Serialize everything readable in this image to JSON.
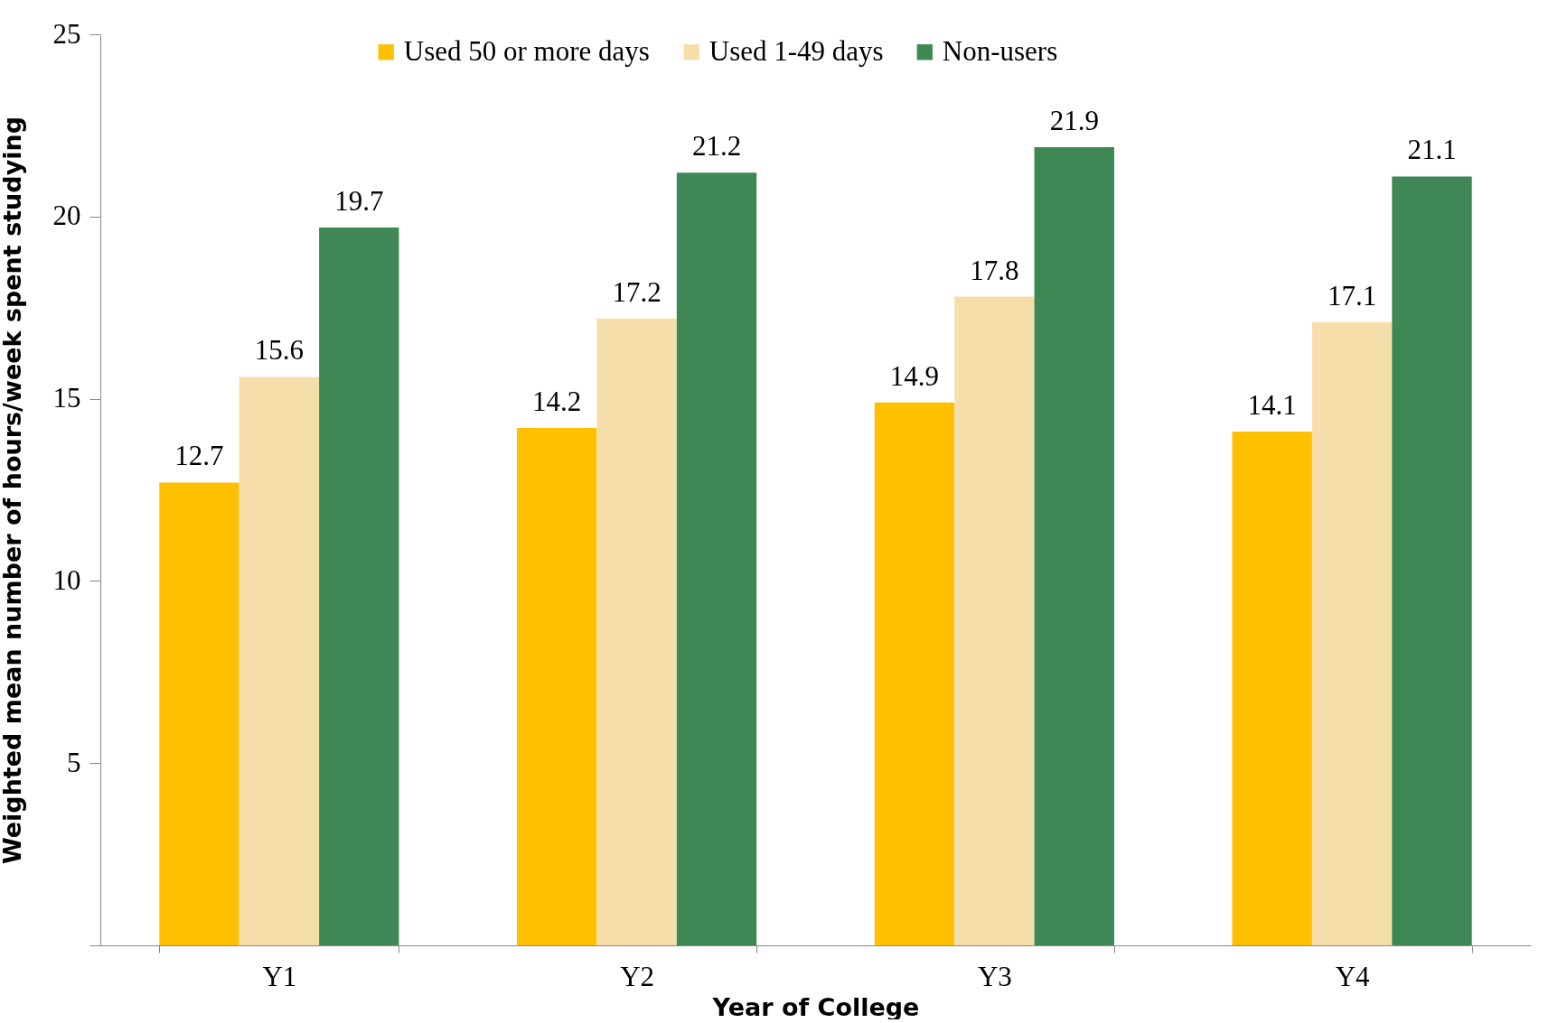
{
  "chart_data": {
    "type": "bar",
    "xlabel": "Year of College",
    "ylabel": "Weighted mean number of hours/week spent studying",
    "categories": [
      "Y1",
      "Y2",
      "Y3",
      "Y4"
    ],
    "series": [
      {
        "name": "Used 50 or more days",
        "color": "#ffc000",
        "values": [
          12.7,
          14.2,
          14.9,
          14.1
        ]
      },
      {
        "name": "Used 1-49 days",
        "color": "#f6deab",
        "values": [
          15.6,
          17.2,
          17.8,
          17.1
        ]
      },
      {
        "name": "Non-users",
        "color": "#3f8856",
        "values": [
          19.7,
          21.2,
          21.9,
          21.1
        ]
      }
    ],
    "ylim": [
      0,
      25
    ],
    "yticks": [
      {
        "value": 0,
        "label": null
      },
      5,
      10,
      15,
      20,
      25
    ],
    "data_labels": true,
    "legend": "top",
    "grid": false
  }
}
